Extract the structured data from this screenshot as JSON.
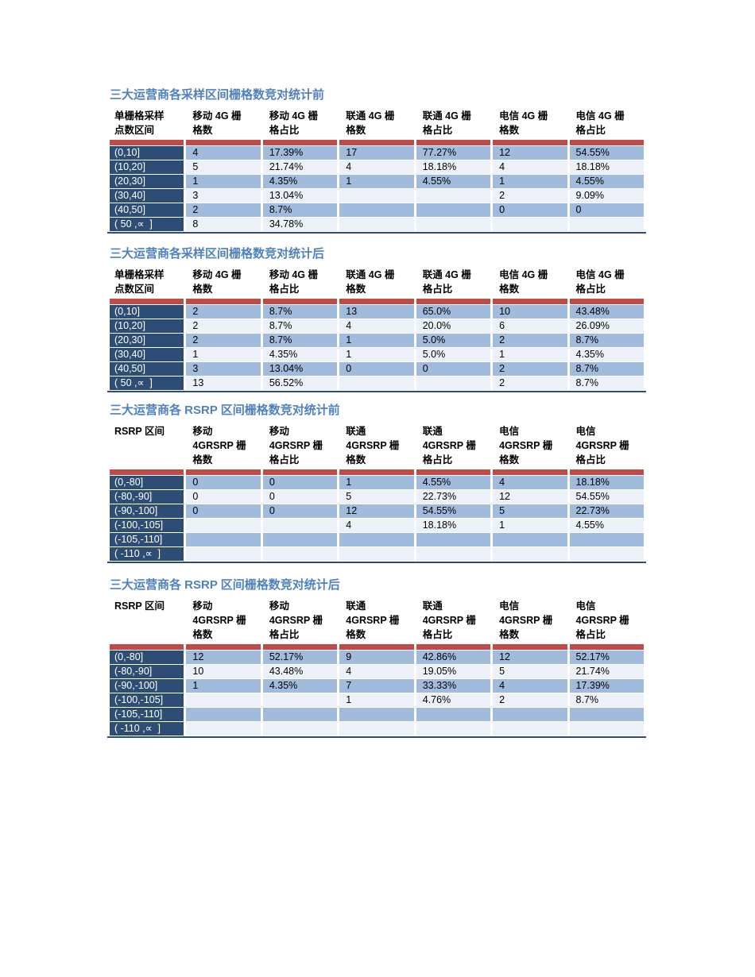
{
  "theme": {
    "page_bg": "#FFFFFF",
    "title_color": "#4F81BD",
    "header_text_color": "#000000",
    "accent_bar_color": "#BE4B48",
    "label_column_bg": "#2E4D74",
    "label_column_text": "#FFFFFF",
    "row_alt1_bg": "#A0BBDC",
    "row_alt2_bg": "#ECF1F8",
    "table_bottom_border": "#2E4D74"
  },
  "tables": [
    {
      "title": "三大运营商各采样区间栅格数竞对统计前",
      "headers": [
        "单栅格采样\n点数区间",
        "移动 4G 栅\n格数",
        "移动 4G 栅\n格占比",
        "联通 4G 栅\n格数",
        "联通 4G 栅\n格占比",
        "电信 4G 栅\n格数",
        "电信 4G 栅\n格占比"
      ],
      "rows": [
        [
          "(0,10]",
          "4",
          "17.39%",
          "17",
          "77.27%",
          "12",
          "54.55%"
        ],
        [
          "(10,20]",
          "5",
          "21.74%",
          "4",
          "18.18%",
          "4",
          "18.18%"
        ],
        [
          "(20,30]",
          "1",
          "4.35%",
          "1",
          "4.55%",
          "1",
          "4.55%"
        ],
        [
          "(30,40]",
          "3",
          "13.04%",
          "",
          "",
          "2",
          "9.09%"
        ],
        [
          "(40,50]",
          "2",
          "8.7%",
          "",
          "",
          "0",
          "0"
        ],
        [
          "( 50 ,∝  ]",
          "8",
          "34.78%",
          "",
          "",
          "",
          ""
        ]
      ]
    },
    {
      "title": "三大运营商各采样区间栅格数竞对统计后",
      "headers": [
        "单栅格采样\n点数区间",
        "移动 4G 栅\n格数",
        "移动 4G 栅\n格占比",
        "联通 4G 栅\n格数",
        "联通 4G 栅\n格占比",
        "电信 4G 栅\n格数",
        "电信 4G 栅\n格占比"
      ],
      "rows": [
        [
          "(0,10]",
          "2",
          "8.7%",
          "13",
          "65.0%",
          "10",
          "43.48%"
        ],
        [
          "(10,20]",
          "2",
          "8.7%",
          "4",
          "20.0%",
          "6",
          "26.09%"
        ],
        [
          "(20,30]",
          "2",
          "8.7%",
          "1",
          "5.0%",
          "2",
          "8.7%"
        ],
        [
          "(30,40]",
          "1",
          "4.35%",
          "1",
          "5.0%",
          "1",
          "4.35%"
        ],
        [
          "(40,50]",
          "3",
          "13.04%",
          "0",
          "0",
          "2",
          "8.7%"
        ],
        [
          "( 50 ,∝  ]",
          "13",
          "56.52%",
          "",
          "",
          "2",
          "8.7%"
        ]
      ]
    },
    {
      "title": "三大运营商各 RSRP 区间栅格数竞对统计前",
      "headers": [
        "RSRP 区间",
        "移动\n4GRSRP 栅\n格数",
        "移动\n4GRSRP 栅\n格占比",
        "联通\n4GRSRP 栅\n格数",
        "联通\n4GRSRP 栅\n格占比",
        "电信\n4GRSRP 栅\n格数",
        "电信\n4GRSRP 栅\n格占比"
      ],
      "rows": [
        [
          "(0,-80]",
          "0",
          "0",
          "1",
          "4.55%",
          "4",
          "18.18%"
        ],
        [
          "(-80,-90]",
          "0",
          "0",
          "5",
          "22.73%",
          "12",
          "54.55%"
        ],
        [
          "(-90,-100]",
          "0",
          "0",
          "12",
          "54.55%",
          "5",
          "22.73%"
        ],
        [
          "(-100,-105]",
          "",
          "",
          "4",
          "18.18%",
          "1",
          "4.55%"
        ],
        [
          "(-105,-110]",
          "",
          "",
          "",
          "",
          "",
          ""
        ],
        [
          "( -110 ,∝  ]",
          "",
          "",
          "",
          "",
          "",
          ""
        ]
      ]
    },
    {
      "title": "三大运营商各 RSRP 区间栅格数竞对统计后",
      "headers": [
        "RSRP 区间",
        "移动\n4GRSRP 栅\n格数",
        "移动\n4GRSRP 栅\n格占比",
        "联通\n4GRSRP 栅\n格数",
        "联通\n4GRSRP 栅\n格占比",
        "电信\n4GRSRP 栅\n格数",
        "电信\n4GRSRP 栅\n格占比"
      ],
      "rows": [
        [
          "(0,-80]",
          "12",
          "52.17%",
          "9",
          "42.86%",
          "12",
          "52.17%"
        ],
        [
          "(-80,-90]",
          "10",
          "43.48%",
          "4",
          "19.05%",
          "5",
          "21.74%"
        ],
        [
          "(-90,-100]",
          "1",
          "4.35%",
          "7",
          "33.33%",
          "4",
          "17.39%"
        ],
        [
          "(-100,-105]",
          "",
          "",
          "1",
          "4.76%",
          "2",
          "8.7%"
        ],
        [
          "(-105,-110]",
          "",
          "",
          "",
          "",
          "",
          ""
        ],
        [
          "( -110 ,∝  ]",
          "",
          "",
          "",
          "",
          "",
          ""
        ]
      ]
    }
  ]
}
